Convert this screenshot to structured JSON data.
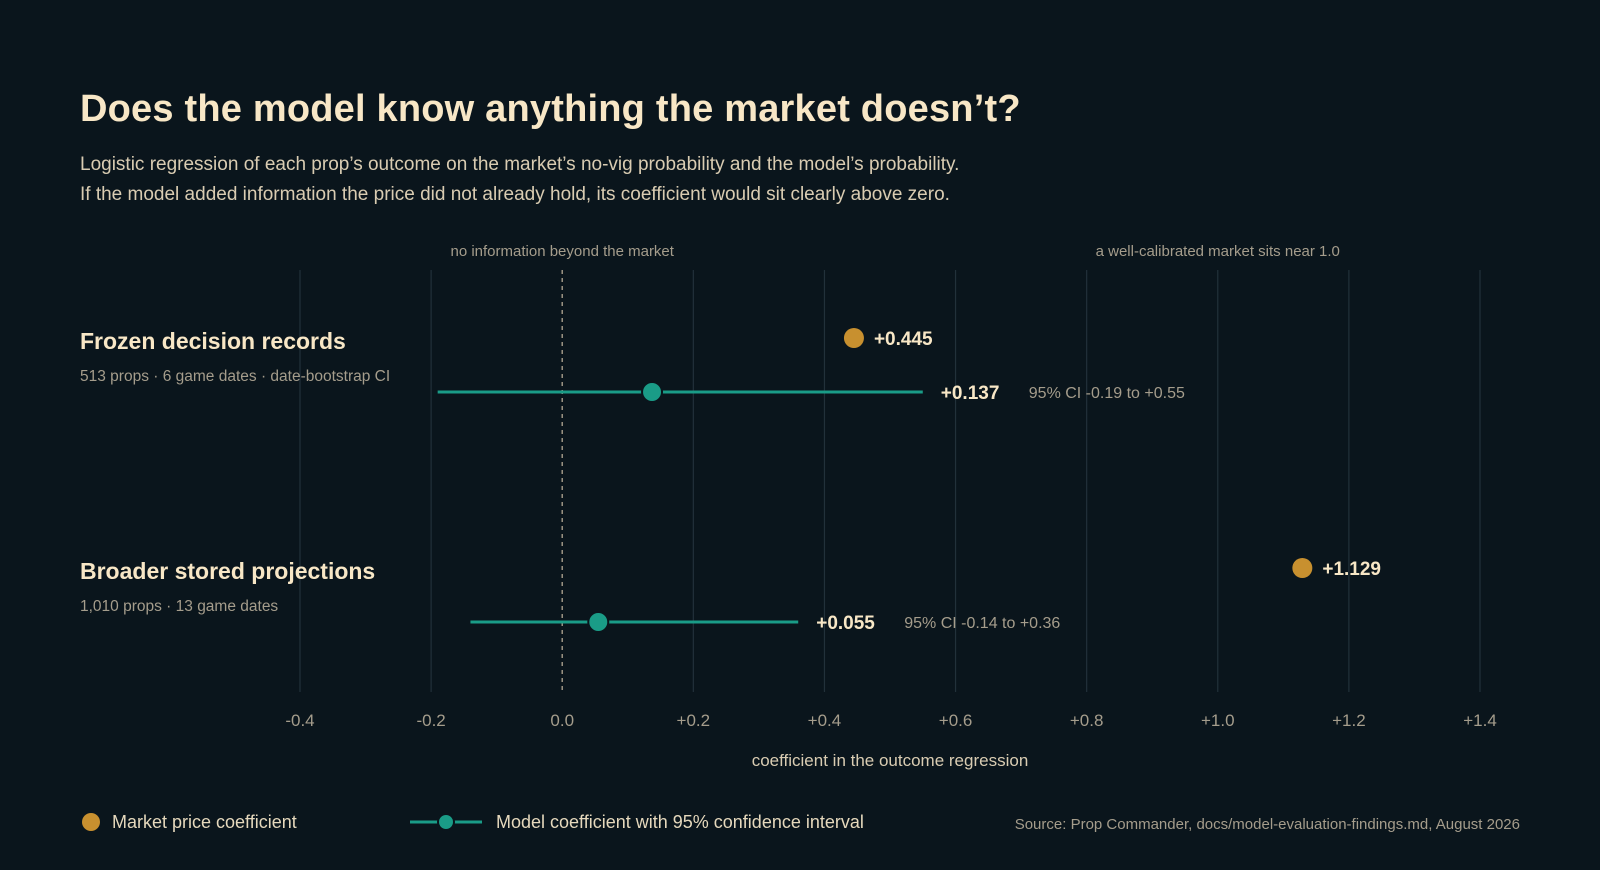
{
  "title": "Does the model know anything the market doesn’t?",
  "subtitle_line1": "Logistic regression of each prop’s outcome on the market’s no-vig probability and the model’s probability.",
  "subtitle_line2": "If the model added information the price did not already hold, its coefficient would sit clearly above zero.",
  "colors": {
    "background": "#0a151c",
    "market": "#c8902f",
    "model": "#1a9c87",
    "text": "#f8e7c6",
    "muted": "#a59d8c"
  },
  "chart_data": {
    "type": "scatter",
    "xlabel": "coefficient in the outcome regression",
    "xlim": [
      -0.4,
      1.4
    ],
    "ticks": [
      -0.4,
      -0.2,
      0.0,
      0.2,
      0.4,
      0.6,
      0.8,
      1.0,
      1.2,
      1.4
    ],
    "tick_labels": [
      "-0.4",
      "-0.2",
      "0.0",
      "+0.2",
      "+0.4",
      "+0.6",
      "+0.8",
      "+1.0",
      "+1.2",
      "+1.4"
    ],
    "grid": true,
    "annotations": [
      {
        "text": "no information beyond the market",
        "x": 0.0
      },
      {
        "text": "a well-calibrated market sits near 1.0",
        "x": 1.0
      }
    ],
    "rows": [
      {
        "label": "Frozen decision records",
        "sublabel": "513 props · 6 game dates · date-bootstrap CI",
        "market_coef": 0.445,
        "market_label": "+0.445",
        "model_coef": 0.137,
        "model_label": "+0.137",
        "ci": [
          -0.19,
          0.55
        ],
        "ci_label": "95% CI -0.19 to +0.55"
      },
      {
        "label": "Broader stored projections",
        "sublabel": "1,010 props · 13 game dates",
        "market_coef": 1.129,
        "market_label": "+1.129",
        "model_coef": 0.055,
        "model_label": "+0.055",
        "ci": [
          -0.14,
          0.36
        ],
        "ci_label": "95% CI -0.14 to +0.36"
      }
    ]
  },
  "legend": {
    "market": "Market price coefficient",
    "model": "Model coefficient with 95% confidence interval"
  },
  "source": "Source: Prop Commander, docs/model-evaluation-findings.md, August 2026"
}
